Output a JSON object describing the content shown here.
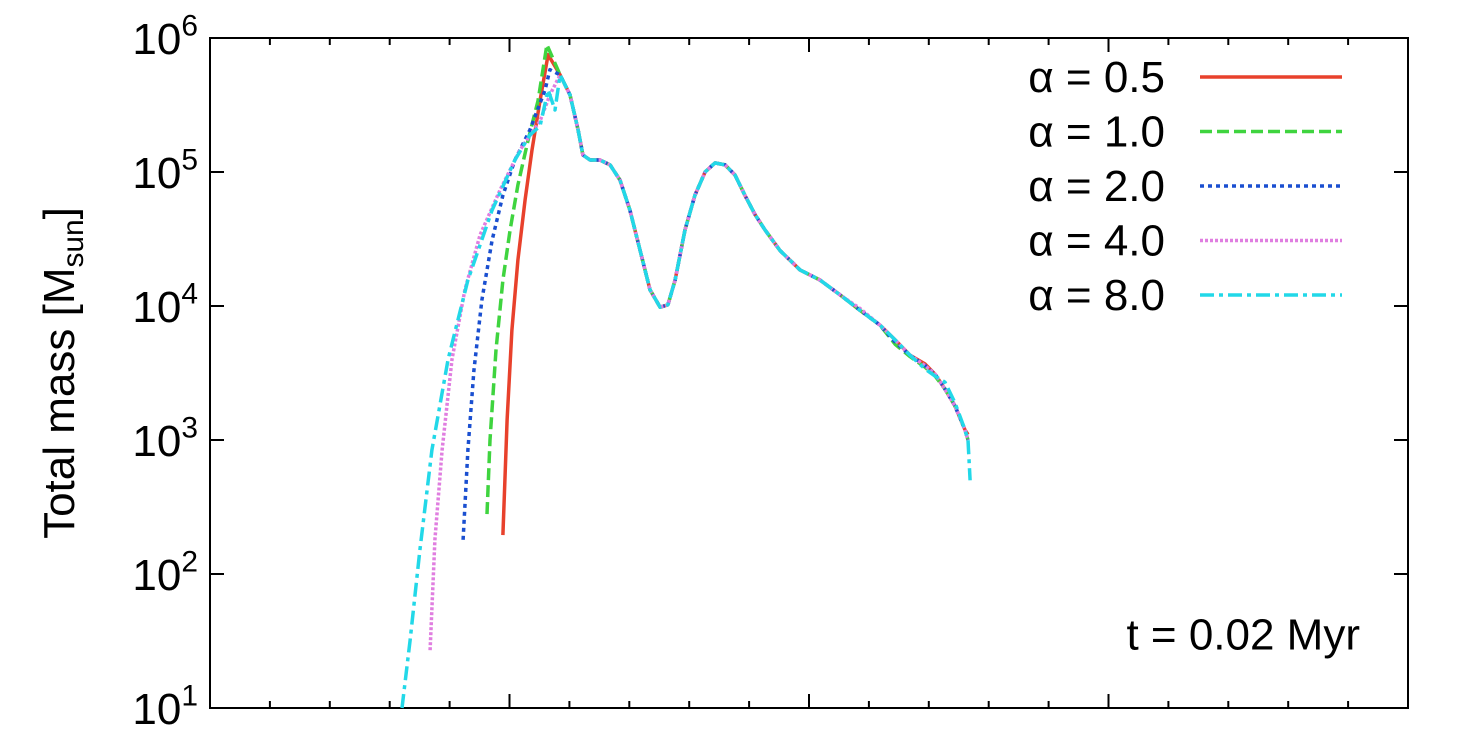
{
  "chart_data": {
    "type": "line",
    "y_label": "Total mass [M_sun]",
    "annotation": "t = 0.02 Myr",
    "ylog": true,
    "ylim": [
      10,
      1000000
    ],
    "yticks": [
      {
        "value": 10,
        "label": "10^1"
      },
      {
        "value": 100,
        "label": "10^2"
      },
      {
        "value": 1000,
        "label": "10^3"
      },
      {
        "value": 10000,
        "label": "10^4"
      },
      {
        "value": 100000,
        "label": "10^5"
      },
      {
        "value": 1000000,
        "label": "10^6"
      }
    ],
    "xlim": [
      0,
      4
    ],
    "xticks": [
      0,
      1,
      2,
      3,
      4
    ],
    "xminorticks": [
      0.2,
      0.4,
      0.6,
      0.8,
      1.2,
      1.4,
      1.6,
      1.8,
      2.2,
      2.4,
      2.6,
      2.8,
      3.2,
      3.4,
      3.6,
      3.8
    ],
    "legend": "upper right",
    "series": [
      {
        "name": "α = 0.5",
        "color": "#e8412c",
        "dash": "solid",
        "x": [
          0.978,
          0.992,
          1.008,
          1.028,
          1.052,
          1.075,
          1.102,
          1.129,
          1.169,
          1.202,
          1.229,
          1.245,
          1.269,
          1.302,
          1.336,
          1.369,
          1.402,
          1.436,
          1.469,
          1.503,
          1.529,
          1.553,
          1.586,
          1.619,
          1.653,
          1.686,
          1.72,
          1.753,
          1.786,
          1.82,
          1.853,
          1.903,
          1.97,
          2.037,
          2.104,
          2.17,
          2.237,
          2.287,
          2.337,
          2.387,
          2.421,
          2.454,
          2.487,
          2.521,
          2.531
        ],
        "values": [
          195,
          1410,
          6600,
          22000,
          62000,
          146000,
          340000,
          750000,
          530000,
          376000,
          206000,
          134000,
          123000,
          123000,
          113000,
          87000,
          52000,
          26000,
          13200,
          9800,
          10200,
          15600,
          37000,
          67000,
          100000,
          117000,
          113000,
          95000,
          67000,
          48000,
          37000,
          26000,
          18600,
          15600,
          12100,
          9300,
          7200,
          5600,
          4300,
          3700,
          3100,
          2400,
          1800,
          1190,
          1100
        ]
      },
      {
        "name": "α = 1.0",
        "color": "#3fd43f",
        "dash": "dashed",
        "x": [
          0.925,
          0.935,
          0.955,
          0.978,
          1.002,
          1.028,
          1.062,
          1.095,
          1.125,
          1.169,
          1.202,
          1.229,
          1.245,
          1.269,
          1.302,
          1.336,
          1.369,
          1.402,
          1.436,
          1.469,
          1.503,
          1.529,
          1.553,
          1.586,
          1.619,
          1.653,
          1.686,
          1.72,
          1.753,
          1.786,
          1.82,
          1.853,
          1.903,
          1.97,
          2.037,
          2.104,
          2.17,
          2.237,
          2.287,
          2.337,
          2.387,
          2.421,
          2.454,
          2.487,
          2.521,
          2.531
        ],
        "values": [
          280,
          1000,
          4700,
          15600,
          37000,
          80000,
          173000,
          340000,
          890000,
          530000,
          376000,
          206000,
          134000,
          123000,
          123000,
          113000,
          87000,
          52000,
          26000,
          13200,
          9800,
          10200,
          15600,
          37000,
          67000,
          100000,
          117000,
          113000,
          95000,
          67000,
          48000,
          37000,
          26000,
          18600,
          15600,
          12100,
          9300,
          7200,
          5200,
          4200,
          3500,
          3000,
          2400,
          1800,
          1190,
          1000
        ]
      },
      {
        "name": "α = 2.0",
        "color": "#1a4fd0",
        "dash": "dotted",
        "x": [
          0.845,
          0.861,
          0.881,
          0.908,
          0.942,
          0.978,
          1.018,
          1.068,
          1.119,
          1.135,
          1.169,
          1.202,
          1.229,
          1.245,
          1.269,
          1.302,
          1.336,
          1.369,
          1.402,
          1.436,
          1.469,
          1.503,
          1.529,
          1.553,
          1.586,
          1.619,
          1.653,
          1.686,
          1.72,
          1.753,
          1.786,
          1.82,
          1.853,
          1.903,
          1.97,
          2.037,
          2.104,
          2.17,
          2.237,
          2.287,
          2.337,
          2.387,
          2.421,
          2.454,
          2.487,
          2.521,
          2.531
        ],
        "values": [
          180,
          840,
          3300,
          11100,
          31000,
          67000,
          123000,
          206000,
          410000,
          580000,
          530000,
          376000,
          206000,
          134000,
          123000,
          123000,
          113000,
          87000,
          52000,
          26000,
          13200,
          9800,
          10200,
          15600,
          37000,
          67000,
          100000,
          117000,
          113000,
          95000,
          67000,
          48000,
          37000,
          26000,
          18600,
          15600,
          12100,
          9300,
          7200,
          5400,
          4300,
          3600,
          3100,
          2400,
          1800,
          1190,
          1000
        ]
      },
      {
        "name": "α = 4.0",
        "color": "#e07ee0",
        "dash": "finedot",
        "x": [
          0.735,
          0.751,
          0.775,
          0.808,
          0.851,
          0.902,
          0.968,
          1.035,
          1.102,
          1.135,
          1.169,
          1.202,
          1.229,
          1.245,
          1.269,
          1.302,
          1.336,
          1.369,
          1.402,
          1.436,
          1.469,
          1.503,
          1.529,
          1.553,
          1.586,
          1.619,
          1.653,
          1.686,
          1.72,
          1.753,
          1.786,
          1.82,
          1.853,
          1.903,
          1.97,
          2.037,
          2.104,
          2.17,
          2.237,
          2.287,
          2.337,
          2.387,
          2.421,
          2.454,
          2.487,
          2.521,
          2.531
        ],
        "values": [
          27,
          180,
          840,
          4000,
          13200,
          34000,
          73000,
          146000,
          240000,
          376000,
          530000,
          376000,
          206000,
          134000,
          123000,
          123000,
          113000,
          87000,
          52000,
          26000,
          13200,
          9800,
          10200,
          15600,
          37000,
          67000,
          100000,
          117000,
          113000,
          95000,
          67000,
          48000,
          37000,
          26000,
          18600,
          15600,
          12100,
          9600,
          7200,
          5600,
          4300,
          3600,
          3100,
          2400,
          1800,
          1190,
          1000
        ]
      },
      {
        "name": "α = 8.0",
        "color": "#22d8e8",
        "dash": "dashdot",
        "x": [
          0.641,
          0.668,
          0.701,
          0.741,
          0.795,
          0.861,
          0.942,
          1.018,
          1.068,
          1.102,
          1.129,
          1.152,
          1.169,
          1.202,
          1.229,
          1.245,
          1.269,
          1.302,
          1.336,
          1.369,
          1.402,
          1.436,
          1.469,
          1.503,
          1.529,
          1.553,
          1.586,
          1.619,
          1.653,
          1.686,
          1.72,
          1.753,
          1.786,
          1.82,
          1.853,
          1.903,
          1.97,
          2.037,
          2.104,
          2.17,
          2.237,
          2.287,
          2.337,
          2.387,
          2.421,
          2.454,
          2.487,
          2.521,
          2.531,
          2.538
        ],
        "values": [
          10,
          32,
          151,
          840,
          4000,
          15600,
          52000,
          123000,
          189000,
          220000,
          410000,
          290000,
          530000,
          376000,
          206000,
          134000,
          123000,
          123000,
          113000,
          87000,
          52000,
          26000,
          13200,
          9800,
          10200,
          15600,
          37000,
          67000,
          100000,
          117000,
          113000,
          95000,
          67000,
          48000,
          37000,
          26000,
          18600,
          15600,
          12100,
          9300,
          7200,
          5600,
          4300,
          3400,
          3000,
          2700,
          1900,
          1190,
          1000,
          500
        ]
      }
    ]
  }
}
